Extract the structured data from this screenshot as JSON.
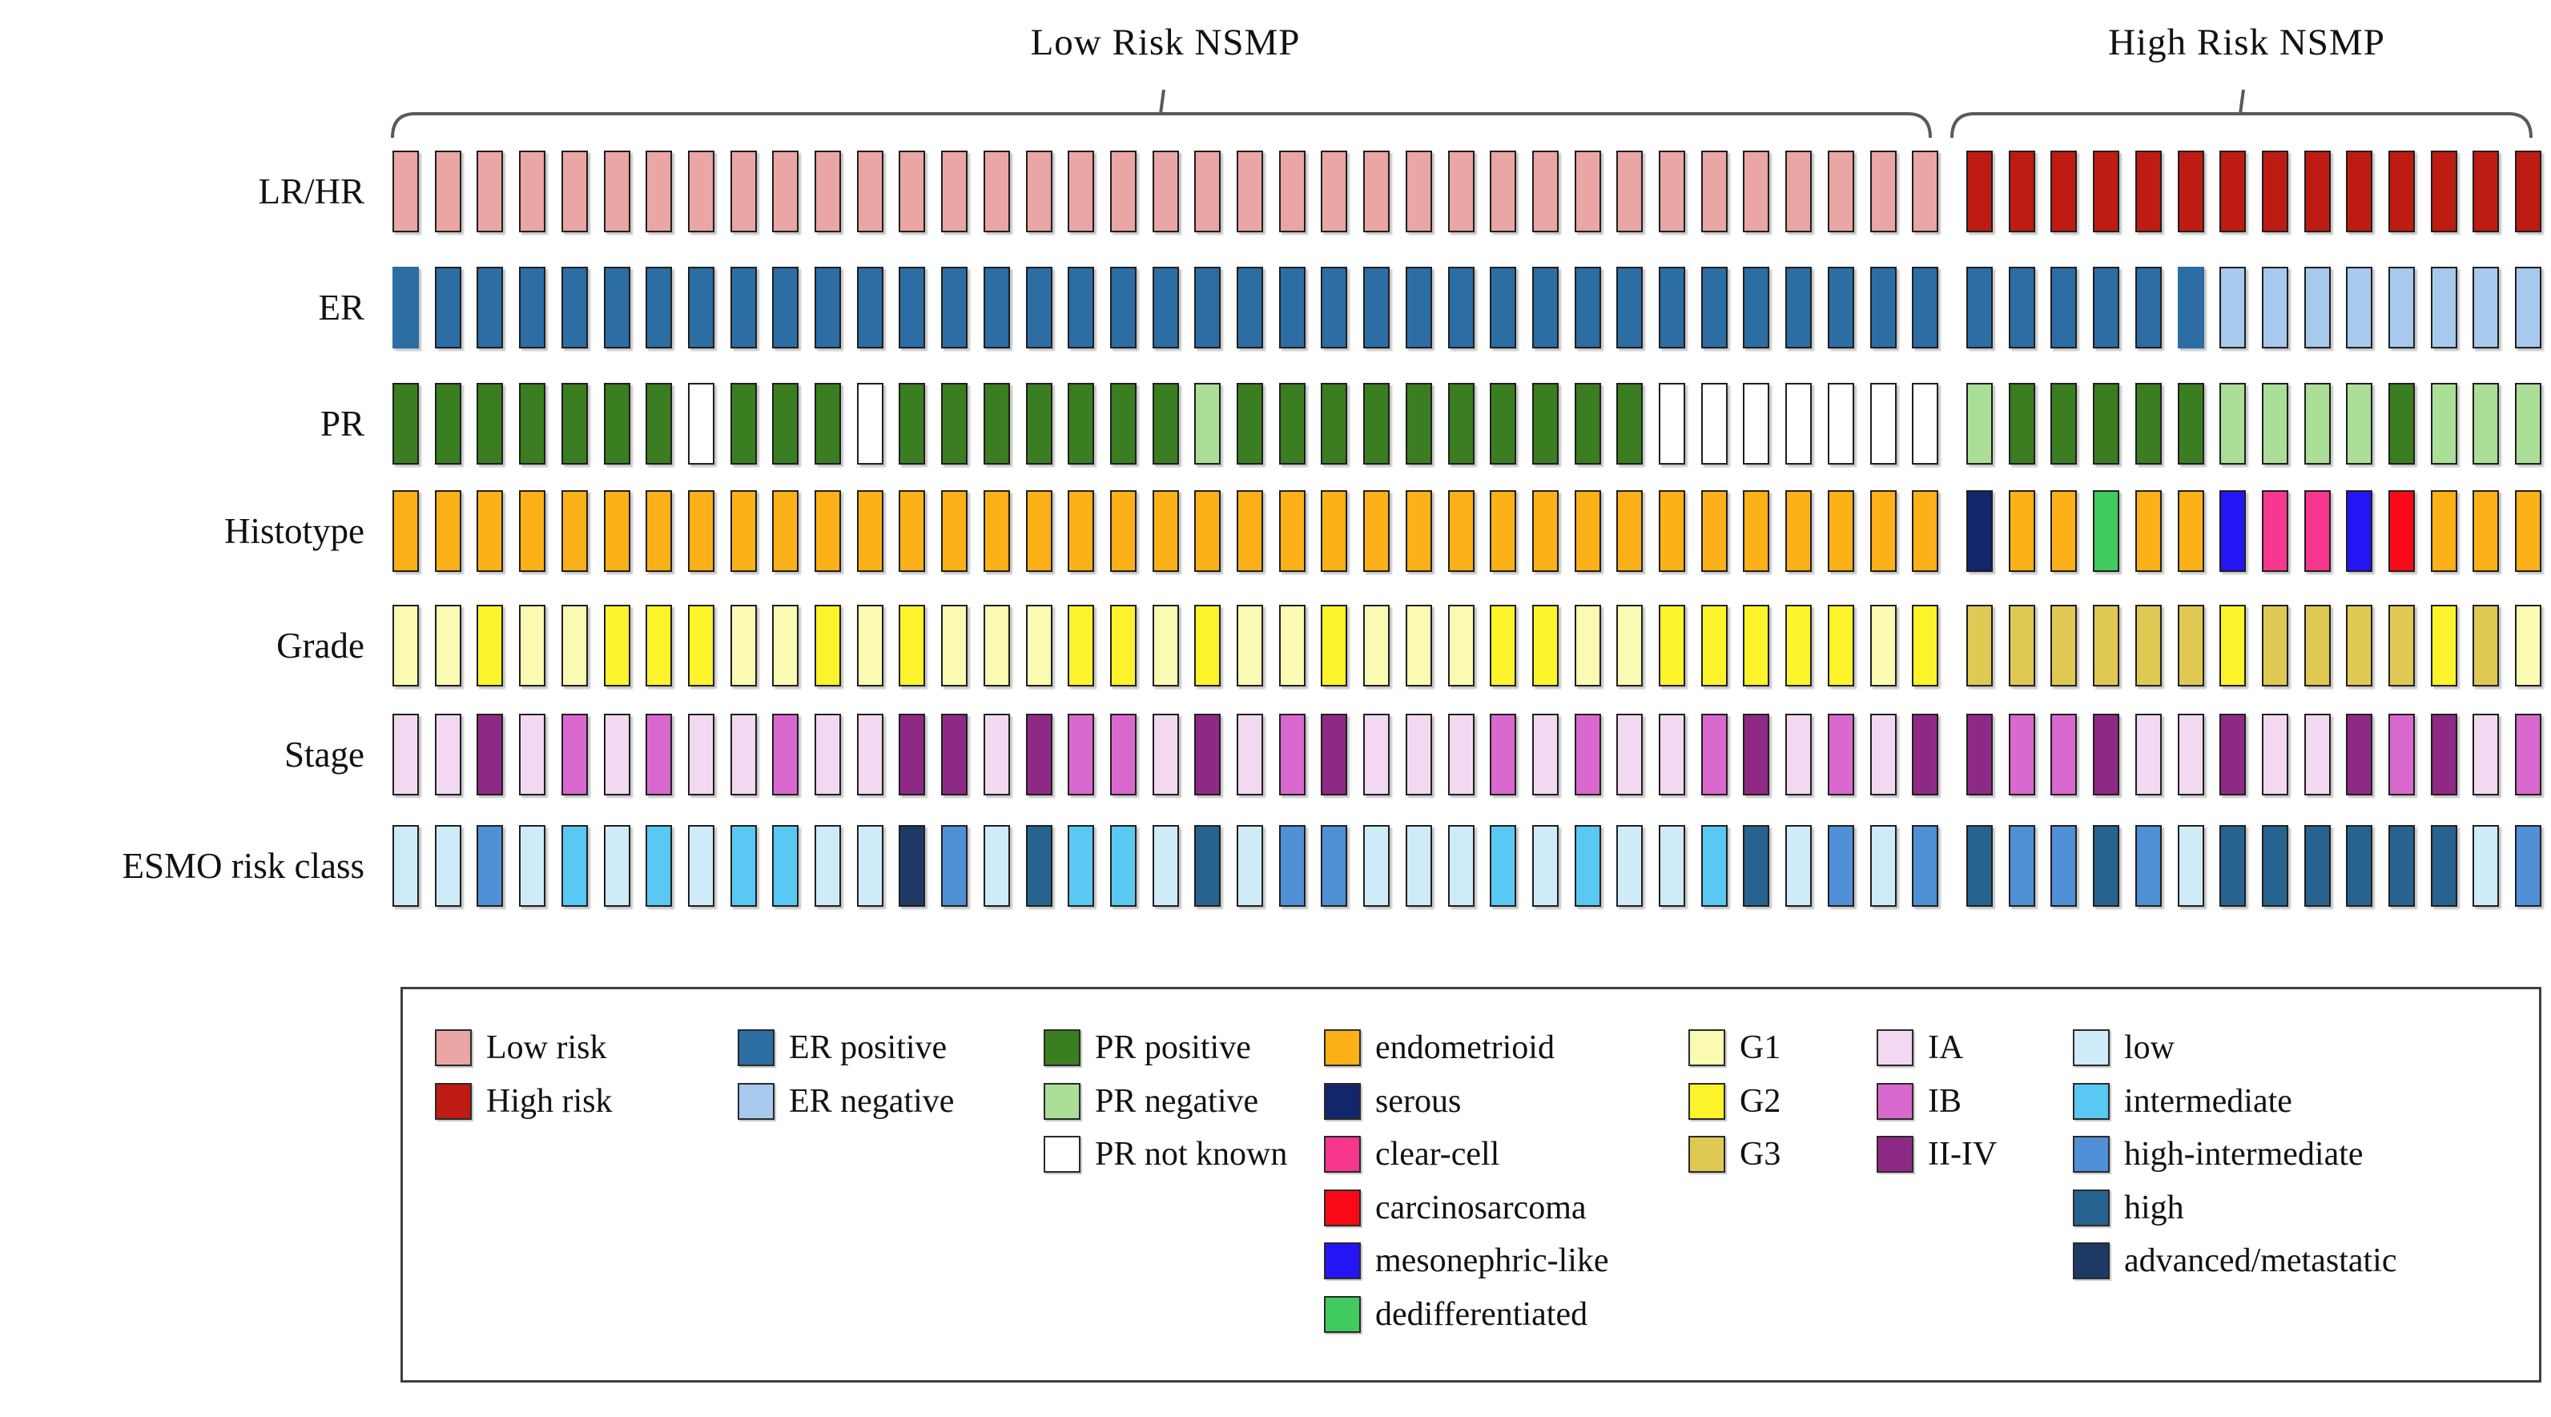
{
  "groups": {
    "low": {
      "title": "Low Risk NSMP",
      "n_patients": 37
    },
    "high": {
      "title": "High Risk NSMP",
      "n_patients": 14
    }
  },
  "row_labels": [
    "LR/HR",
    "ER",
    "PR",
    "Histotype",
    "Grade",
    "Stage",
    "ESMO risk class"
  ],
  "colors": {
    "Low risk": "#E9A6A4",
    "High risk": "#BE1B12",
    "ER positive": "#2C6DA4",
    "ER negative": "#A8C9EE",
    "PR positive": "#3B7D21",
    "PR negative": "#ABDF98",
    "PR not known": "#FFFFFF",
    "endometrioid": "#FBB117",
    "serous": "#13256B",
    "clear-cell": "#F6368F",
    "carcinosarcoma": "#FA0A18",
    "mesonephric-like": "#2315F4",
    "dedifferentiated": "#41CB5F",
    "G1": "#FAFAB3",
    "G2": "#FCF32A",
    "G3": "#DFC952",
    "IA": "#F3D8F1",
    "IB": "#D969CE",
    "II-IV": "#8E2A86",
    "low": "#D0EBF8",
    "intermediate": "#59C8F2",
    "high-intermediate": "#5090D6",
    "high": "#26648F",
    "advanced/metastatic": "#1E3A64"
  },
  "legend": {
    "columns": [
      [
        "Low risk",
        "High risk"
      ],
      [
        "ER positive",
        "ER negative"
      ],
      [
        "PR positive",
        "PR negative",
        "PR not known"
      ],
      [
        "endometrioid",
        "serous",
        "clear-cell",
        "carcinosarcoma",
        "mesonephric-like",
        "dedifferentiated"
      ],
      [
        "G1",
        "G2",
        "G3"
      ],
      [
        "IA",
        "IB",
        "II-IV"
      ],
      [
        "low",
        "intermediate",
        "high-intermediate",
        "high",
        "advanced/metastatic"
      ]
    ]
  },
  "chart_data": {
    "type": "heatmap",
    "subtype": "oncoplot-patient-feature-matrix",
    "title": "",
    "column_groups": [
      {
        "name": "Low Risk NSMP",
        "columns": 37
      },
      {
        "name": "High Risk NSMP",
        "columns": 14
      }
    ],
    "n_columns": 51,
    "rows": [
      {
        "key": "lrhr",
        "label": "LR/HR",
        "values": [
          "Low risk",
          "Low risk",
          "Low risk",
          "Low risk",
          "Low risk",
          "Low risk",
          "Low risk",
          "Low risk",
          "Low risk",
          "Low risk",
          "Low risk",
          "Low risk",
          "Low risk",
          "Low risk",
          "Low risk",
          "Low risk",
          "Low risk",
          "Low risk",
          "Low risk",
          "Low risk",
          "Low risk",
          "Low risk",
          "Low risk",
          "Low risk",
          "Low risk",
          "Low risk",
          "Low risk",
          "Low risk",
          "Low risk",
          "Low risk",
          "Low risk",
          "Low risk",
          "Low risk",
          "Low risk",
          "Low risk",
          "Low risk",
          "Low risk",
          "High risk",
          "High risk",
          "High risk",
          "High risk",
          "High risk",
          "High risk",
          "High risk",
          "High risk",
          "High risk",
          "High risk",
          "High risk",
          "High risk",
          "High risk",
          "High risk"
        ]
      },
      {
        "key": "er",
        "label": "ER",
        "borderless": [
          1,
          43
        ],
        "values": [
          "ER positive",
          "ER positive",
          "ER positive",
          "ER positive",
          "ER positive",
          "ER positive",
          "ER positive",
          "ER positive",
          "ER positive",
          "ER positive",
          "ER positive",
          "ER positive",
          "ER positive",
          "ER positive",
          "ER positive",
          "ER positive",
          "ER positive",
          "ER positive",
          "ER positive",
          "ER positive",
          "ER positive",
          "ER positive",
          "ER positive",
          "ER positive",
          "ER positive",
          "ER positive",
          "ER positive",
          "ER positive",
          "ER positive",
          "ER positive",
          "ER positive",
          "ER positive",
          "ER positive",
          "ER positive",
          "ER positive",
          "ER positive",
          "ER positive",
          "ER positive",
          "ER positive",
          "ER positive",
          "ER positive",
          "ER positive",
          "ER positive",
          "ER negative",
          "ER negative",
          "ER negative",
          "ER negative",
          "ER negative",
          "ER negative",
          "ER negative",
          "ER negative"
        ]
      },
      {
        "key": "pr",
        "label": "PR",
        "values": [
          "PR positive",
          "PR positive",
          "PR positive",
          "PR positive",
          "PR positive",
          "PR positive",
          "PR positive",
          "PR not known",
          "PR positive",
          "PR positive",
          "PR positive",
          "PR not known",
          "PR positive",
          "PR positive",
          "PR positive",
          "PR positive",
          "PR positive",
          "PR positive",
          "PR positive",
          "PR negative",
          "PR positive",
          "PR positive",
          "PR positive",
          "PR positive",
          "PR positive",
          "PR positive",
          "PR positive",
          "PR positive",
          "PR positive",
          "PR positive",
          "PR not known",
          "PR not known",
          "PR not known",
          "PR not known",
          "PR not known",
          "PR not known",
          "PR not known",
          "PR negative",
          "PR positive",
          "PR positive",
          "PR positive",
          "PR positive",
          "PR positive",
          "PR negative",
          "PR negative",
          "PR negative",
          "PR negative",
          "PR positive",
          "PR negative",
          "PR negative",
          "PR negative"
        ]
      },
      {
        "key": "histotype",
        "label": "Histotype",
        "values": [
          "endometrioid",
          "endometrioid",
          "endometrioid",
          "endometrioid",
          "endometrioid",
          "endometrioid",
          "endometrioid",
          "endometrioid",
          "endometrioid",
          "endometrioid",
          "endometrioid",
          "endometrioid",
          "endometrioid",
          "endometrioid",
          "endometrioid",
          "endometrioid",
          "endometrioid",
          "endometrioid",
          "endometrioid",
          "endometrioid",
          "endometrioid",
          "endometrioid",
          "endometrioid",
          "endometrioid",
          "endometrioid",
          "endometrioid",
          "endometrioid",
          "endometrioid",
          "endometrioid",
          "endometrioid",
          "endometrioid",
          "endometrioid",
          "endometrioid",
          "endometrioid",
          "endometrioid",
          "endometrioid",
          "endometrioid",
          "serous",
          "endometrioid",
          "endometrioid",
          "dedifferentiated",
          "endometrioid",
          "endometrioid",
          "mesonephric-like",
          "clear-cell",
          "clear-cell",
          "mesonephric-like",
          "carcinosarcoma",
          "endometrioid",
          "endometrioid",
          "endometrioid"
        ]
      },
      {
        "key": "grade",
        "label": "Grade",
        "values": [
          "G1",
          "G1",
          "G2",
          "G1",
          "G1",
          "G2",
          "G2",
          "G2",
          "G1",
          "G1",
          "G2",
          "G1",
          "G2",
          "G1",
          "G1",
          "G1",
          "G2",
          "G2",
          "G1",
          "G2",
          "G1",
          "G1",
          "G2",
          "G1",
          "G1",
          "G1",
          "G2",
          "G2",
          "G1",
          "G1",
          "G2",
          "G2",
          "G2",
          "G2",
          "G2",
          "G1",
          "G2",
          "G3",
          "G3",
          "G3",
          "G3",
          "G3",
          "G3",
          "G2",
          "G3",
          "G3",
          "G3",
          "G3",
          "G2",
          "G3",
          "G1"
        ]
      },
      {
        "key": "stage",
        "label": "Stage",
        "values": [
          "IA",
          "IA",
          "II-IV",
          "IA",
          "IB",
          "IA",
          "IB",
          "IA",
          "IA",
          "IB",
          "IA",
          "IA",
          "II-IV",
          "II-IV",
          "IA",
          "II-IV",
          "IB",
          "IB",
          "IA",
          "II-IV",
          "IA",
          "IB",
          "II-IV",
          "IA",
          "IA",
          "IA",
          "IB",
          "IA",
          "IB",
          "IA",
          "IA",
          "IB",
          "II-IV",
          "IA",
          "IB",
          "IA",
          "II-IV",
          "II-IV",
          "IB",
          "IB",
          "II-IV",
          "IA",
          "IA",
          "II-IV",
          "IA",
          "IA",
          "II-IV",
          "IB",
          "II-IV",
          "IA",
          "IB"
        ]
      },
      {
        "key": "esmo",
        "label": "ESMO risk class",
        "values": [
          "low",
          "low",
          "high-intermediate",
          "low",
          "intermediate",
          "low",
          "intermediate",
          "low",
          "intermediate",
          "intermediate",
          "low",
          "low",
          "advanced/metastatic",
          "high-intermediate",
          "low",
          "high",
          "intermediate",
          "intermediate",
          "low",
          "high",
          "low",
          "high-intermediate",
          "high-intermediate",
          "low",
          "low",
          "low",
          "intermediate",
          "low",
          "intermediate",
          "low",
          "low",
          "intermediate",
          "high",
          "low",
          "high-intermediate",
          "low",
          "high-intermediate",
          "high",
          "high-intermediate",
          "high-intermediate",
          "high",
          "high-intermediate",
          "low",
          "high",
          "high",
          "high",
          "high",
          "high",
          "high",
          "low",
          "high-intermediate"
        ]
      }
    ]
  }
}
